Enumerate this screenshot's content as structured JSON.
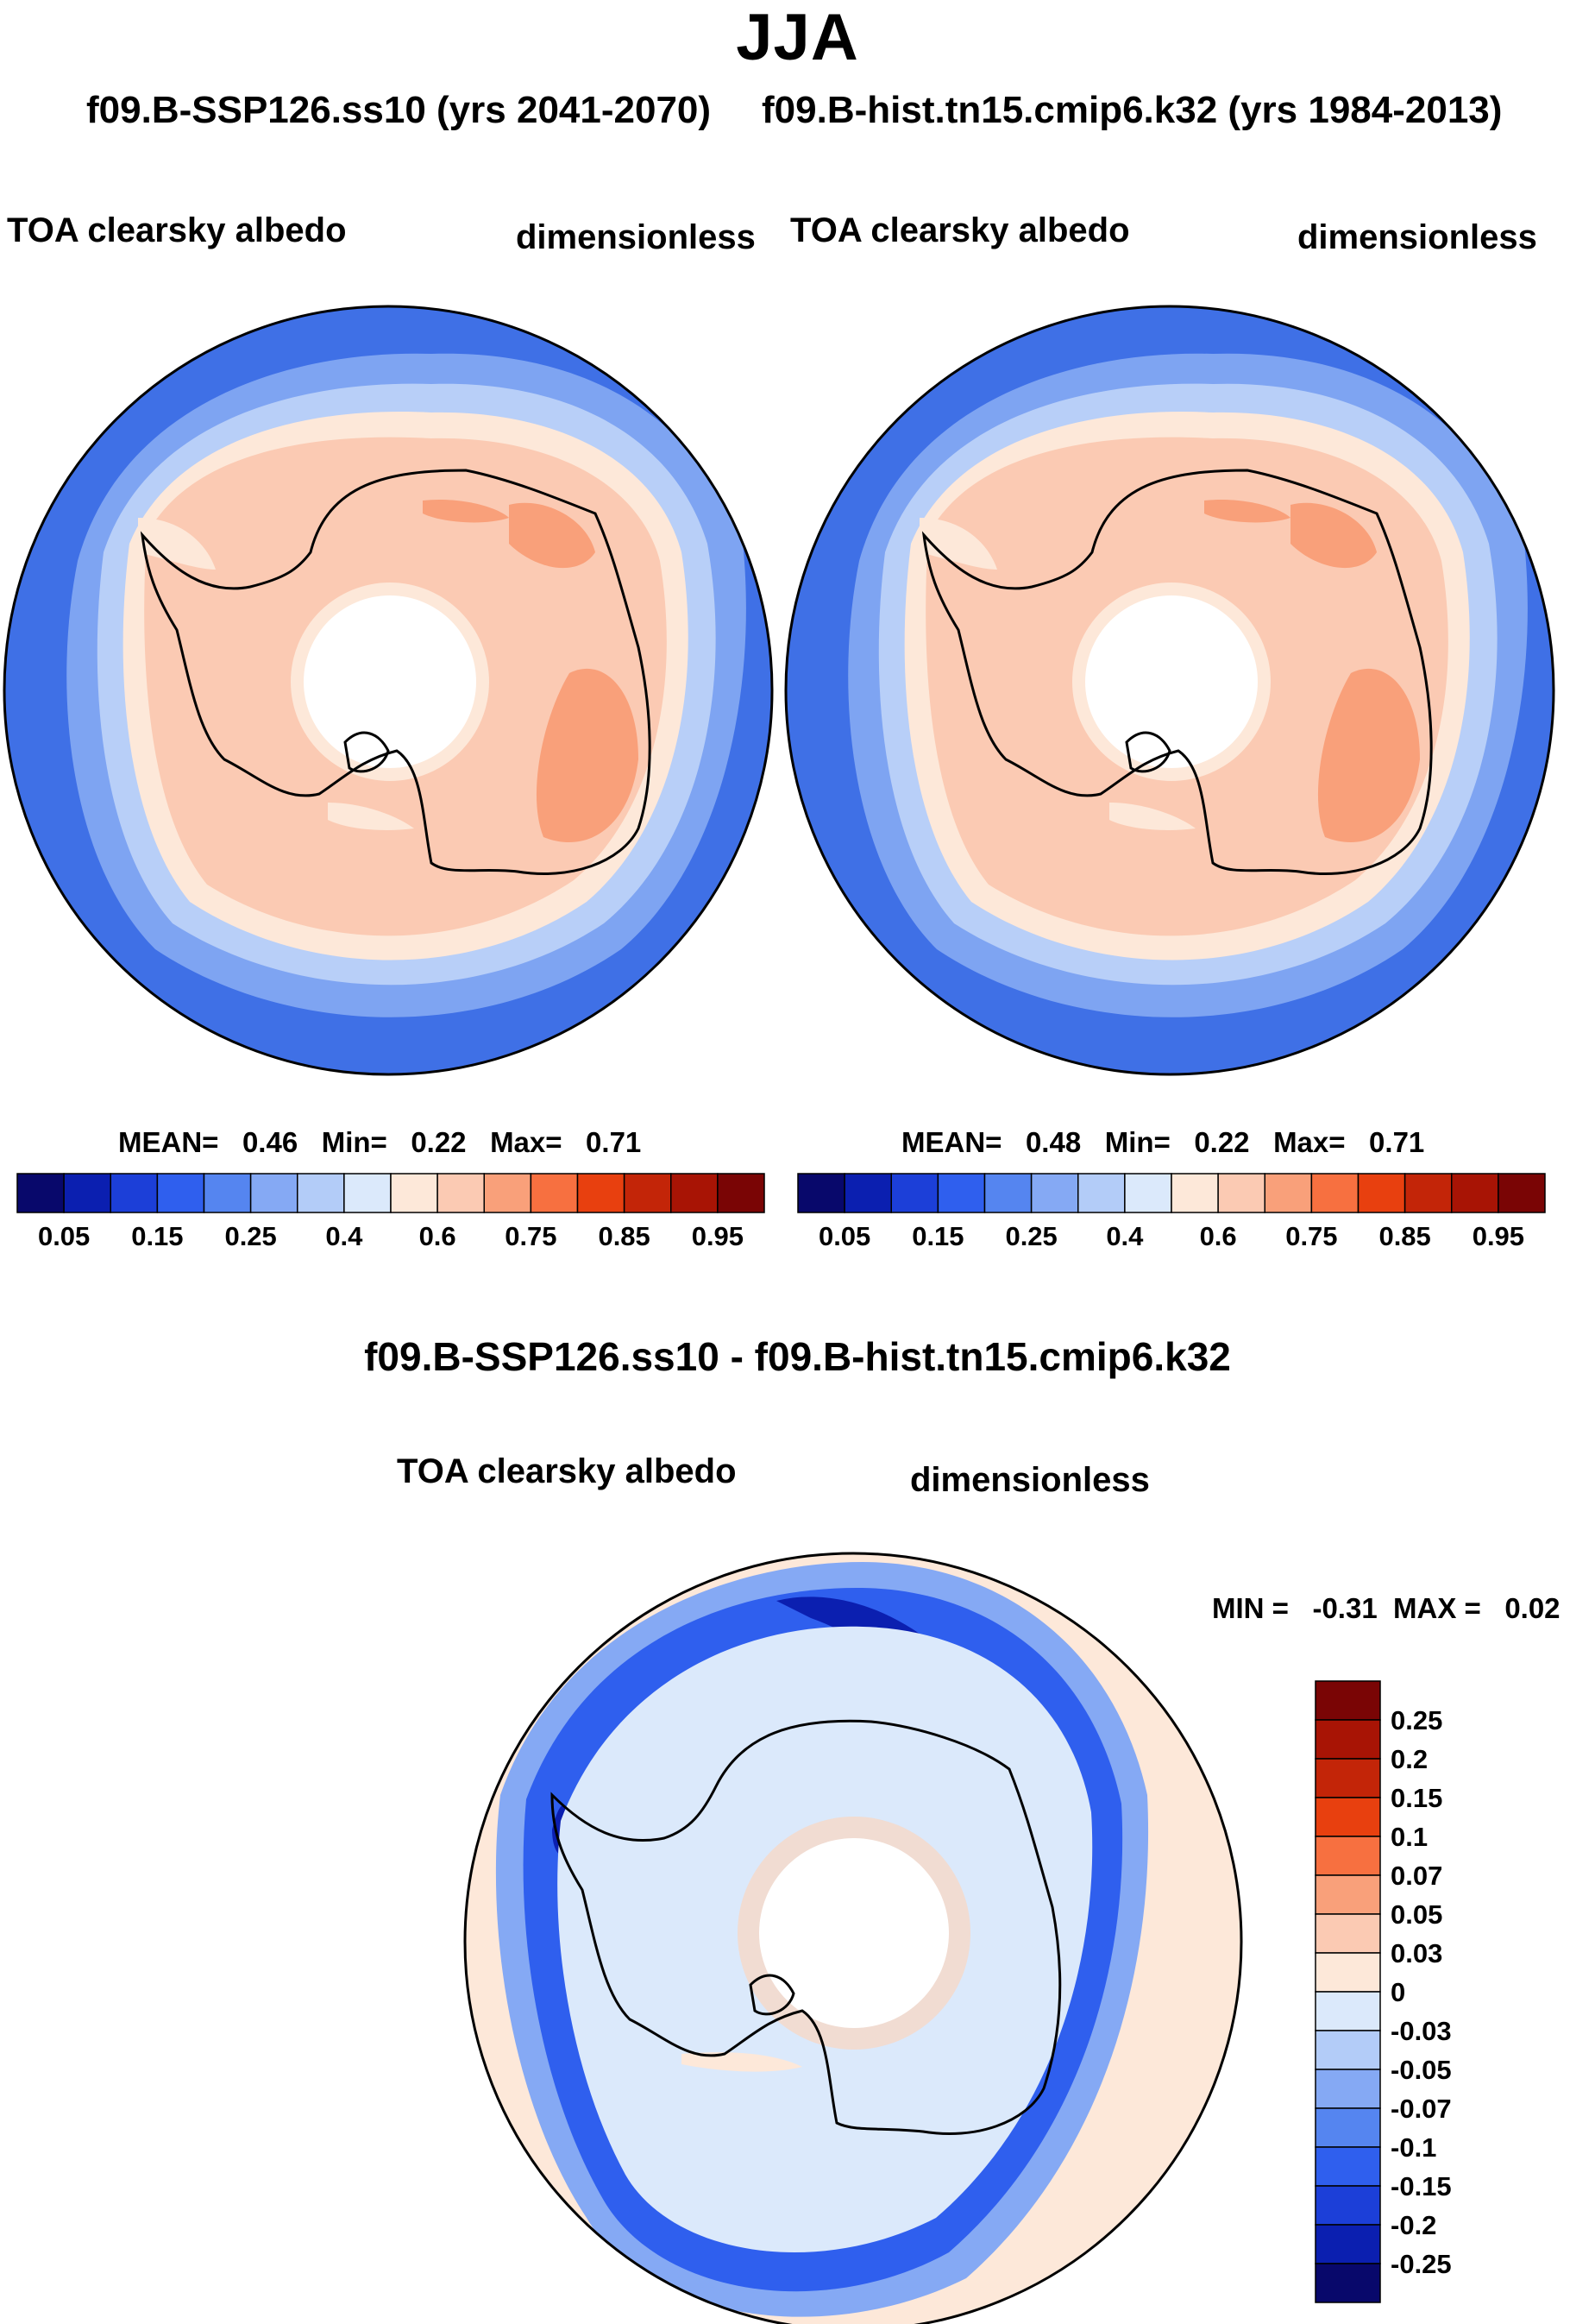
{
  "header": {
    "season": "JJA",
    "case_run": "f09.B-SSP126.ss10 (yrs 2041-2070)",
    "control_run": "f09.B-hist.tn15.cmip6.k32 (yrs 1984-2013)"
  },
  "panels": [
    {
      "variable": "TOA clearsky albedo",
      "units": "dimensionless",
      "stats": {
        "mean_label": "MEAN=",
        "mean": "0.46",
        "min_label": "Min=",
        "min": "0.22",
        "max_label": "Max=",
        "max": "0.71"
      }
    },
    {
      "variable": "TOA clearsky albedo",
      "units": "dimensionless",
      "stats": {
        "mean_label": "MEAN=",
        "mean": "0.48",
        "min_label": "Min=",
        "min": "0.22",
        "max_label": "Max=",
        "max": "0.71"
      }
    }
  ],
  "colorbar": {
    "colors": [
      "#08086b",
      "#0b1fb0",
      "#1c3fd8",
      "#2f5fee",
      "#5585f0",
      "#85a9f4",
      "#b3ccf8",
      "#dbe9fb",
      "#fde8d9",
      "#fbcab3",
      "#f9a07a",
      "#f77040",
      "#e8400f",
      "#c32508",
      "#a81405",
      "#7a0505"
    ],
    "tick_labels": [
      "0.05",
      "0.15",
      "0.25",
      "0.4",
      "0.6",
      "0.75",
      "0.85",
      "0.95"
    ]
  },
  "difference": {
    "title": "f09.B-SSP126.ss10 - f09.B-hist.tn15.cmip6.k32",
    "variable": "TOA clearsky albedo",
    "units": "dimensionless",
    "minmax": {
      "min_label": "MIN =",
      "min": "-0.31",
      "max_label": "MAX =",
      "max": "0.02"
    },
    "colorbar": {
      "colors": [
        "#7a0505",
        "#a81405",
        "#c32508",
        "#e8400f",
        "#f77040",
        "#f9a07a",
        "#fbcab3",
        "#fde8d9",
        "#dbe9fb",
        "#b3ccf8",
        "#85a9f4",
        "#5585f0",
        "#2f5fee",
        "#1c3fd8",
        "#0b1fb0",
        "#08086b"
      ],
      "tick_labels": [
        "0.25",
        "0.2",
        "0.15",
        "0.1",
        "0.07",
        "0.05",
        "0.03",
        "0",
        "-0.03",
        "-0.05",
        "-0.07",
        "-0.1",
        "-0.15",
        "-0.2",
        "-0.25"
      ]
    }
  }
}
